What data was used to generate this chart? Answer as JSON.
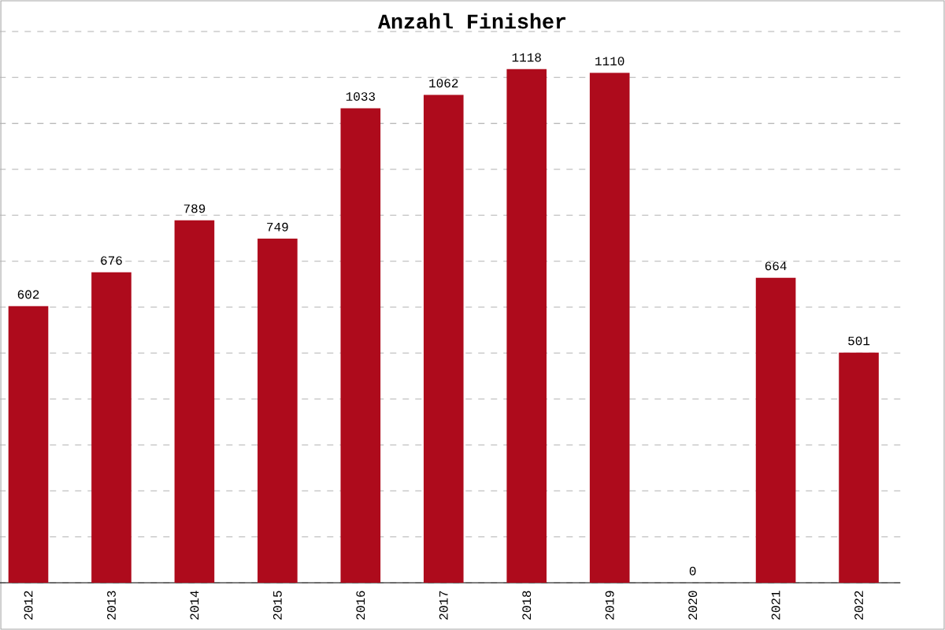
{
  "chart_data": {
    "type": "bar",
    "title": "Anzahl Finisher",
    "categories": [
      "2012",
      "2013",
      "2014",
      "2015",
      "2016",
      "2017",
      "2018",
      "2019",
      "2020",
      "2021",
      "2022"
    ],
    "values": [
      602,
      676,
      789,
      749,
      1033,
      1062,
      1118,
      1110,
      0,
      664,
      501
    ],
    "color": "#ae0b1c",
    "data_labels": true,
    "grid": "y",
    "tick_labels": "x",
    "ylim": [
      0,
      1200
    ],
    "yticks": [
      {
        "value": 0,
        "label": null
      },
      {
        "value": 100,
        "label": null
      },
      {
        "value": 200,
        "label": null
      },
      {
        "value": 300,
        "label": null
      },
      {
        "value": 400,
        "label": null
      },
      {
        "value": 500,
        "label": null
      },
      {
        "value": 600,
        "label": null
      },
      {
        "value": 700,
        "label": null
      },
      {
        "value": 800,
        "label": null
      },
      {
        "value": 900,
        "label": null
      },
      {
        "value": 1000,
        "label": null
      },
      {
        "value": 1100,
        "label": null
      },
      {
        "value": 1200,
        "label": null
      }
    ]
  }
}
